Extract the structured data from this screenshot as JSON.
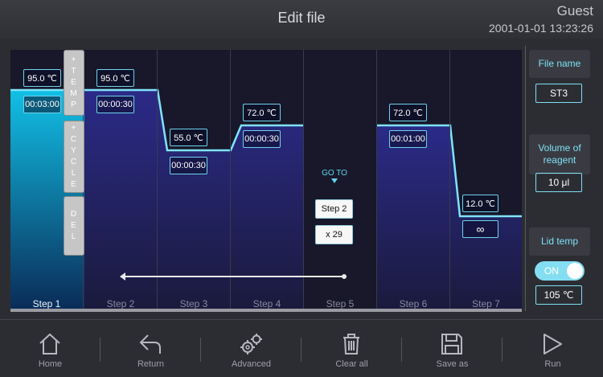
{
  "header": {
    "title": "Edit file",
    "user": "Guest",
    "datetime": "2001-01-01 13:23:26"
  },
  "program": {
    "steps": [
      {
        "label": "Step 1",
        "temp": "95.0 ℃",
        "time": "00:03:00",
        "active": true
      },
      {
        "label": "Step 2",
        "temp": "95.0 ℃",
        "time": "00:00:30"
      },
      {
        "label": "Step 3",
        "temp": "55.0 ℃",
        "time": "00:00:30"
      },
      {
        "label": "Step 4",
        "temp": "72.0 ℃",
        "time": "00:00:30"
      },
      {
        "label": "Step 5",
        "goto_label": "GO TO",
        "goto_target": "Step 2",
        "repeat": "x 29"
      },
      {
        "label": "Step 6",
        "temp": "72.0 ℃",
        "time": "00:01:00"
      },
      {
        "label": "Step 7",
        "temp": "12.0 ℃",
        "time": "∞"
      }
    ],
    "tools": {
      "add_temp": [
        "+",
        "T",
        "E",
        "M",
        "P"
      ],
      "add_cycle": [
        "+",
        "C",
        "Y",
        "C",
        "L",
        "E"
      ],
      "delete": [
        "D",
        "E",
        "L"
      ]
    },
    "colors": {
      "curve": "#7fe4fa",
      "fill_top": "#2a2a8a",
      "active_fill": "#12b4de"
    }
  },
  "right_panel": {
    "file_name_label": "File name",
    "file_name_value": "ST3",
    "volume_label": "Volume of reagent",
    "volume_value": "10 μl",
    "lid_temp_label": "Lid temp",
    "lid_toggle": "ON",
    "lid_temp_value": "105 ℃"
  },
  "footer": {
    "buttons": [
      {
        "label": "Home",
        "icon": "home-icon"
      },
      {
        "label": "Return",
        "icon": "return-arrow-icon"
      },
      {
        "label": "Advanced",
        "icon": "gears-icon"
      },
      {
        "label": "Clear all",
        "icon": "trash-icon"
      },
      {
        "label": "Save as",
        "icon": "floppy-disk-icon"
      },
      {
        "label": "Run",
        "icon": "play-icon"
      }
    ]
  }
}
